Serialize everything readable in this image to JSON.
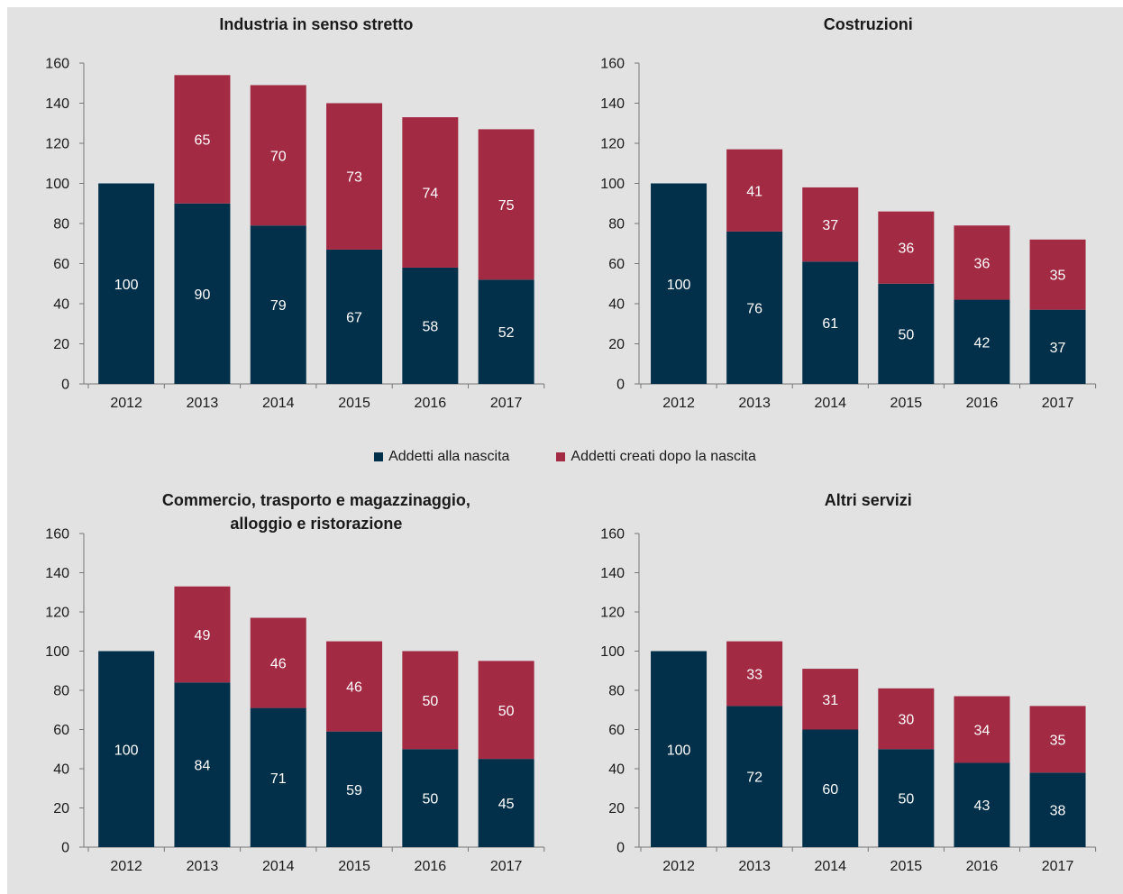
{
  "colors": {
    "birth": "#02304a",
    "after": "#a22a43",
    "axis": "#777777",
    "text": "#1a1a1a",
    "label": "#ffffff"
  },
  "legend": {
    "birth": "Addetti alla nascita",
    "after": "Addetti creati dopo la nascita"
  },
  "chart_data": [
    {
      "type": "bar",
      "stacked": true,
      "title": [
        "Industria in senso stretto"
      ],
      "categories": [
        "2012",
        "2013",
        "2014",
        "2015",
        "2016",
        "2017"
      ],
      "series": [
        {
          "name": "Addetti alla nascita",
          "values": [
            100,
            90,
            79,
            67,
            58,
            52
          ]
        },
        {
          "name": "Addetti creati dopo la nascita",
          "values": [
            null,
            65,
            70,
            73,
            74,
            75
          ]
        }
      ],
      "totals": [
        100,
        154,
        149,
        140,
        133,
        127
      ],
      "ylim": [
        0,
        160
      ],
      "yticks": [
        0,
        20,
        40,
        60,
        80,
        100,
        120,
        140,
        160
      ]
    },
    {
      "type": "bar",
      "stacked": true,
      "title": [
        "Costruzioni"
      ],
      "categories": [
        "2012",
        "2013",
        "2014",
        "2015",
        "2016",
        "2017"
      ],
      "series": [
        {
          "name": "Addetti alla nascita",
          "values": [
            100,
            76,
            61,
            50,
            42,
            37
          ]
        },
        {
          "name": "Addetti creati dopo la nascita",
          "values": [
            null,
            41,
            37,
            36,
            36,
            35
          ]
        }
      ],
      "totals": [
        100,
        117,
        98,
        86,
        79,
        72
      ],
      "ylim": [
        0,
        160
      ],
      "yticks": [
        0,
        20,
        40,
        60,
        80,
        100,
        120,
        140,
        160
      ]
    },
    {
      "type": "bar",
      "stacked": true,
      "title": [
        "Commercio, trasporto e magazzinaggio,",
        "alloggio e ristorazione"
      ],
      "categories": [
        "2012",
        "2013",
        "2014",
        "2015",
        "2016",
        "2017"
      ],
      "series": [
        {
          "name": "Addetti alla nascita",
          "values": [
            100,
            84,
            71,
            59,
            50,
            45
          ]
        },
        {
          "name": "Addetti creati dopo la nascita",
          "values": [
            null,
            49,
            46,
            46,
            50,
            50
          ]
        }
      ],
      "totals": [
        100,
        133,
        117,
        105,
        100,
        95
      ],
      "ylim": [
        0,
        160
      ],
      "yticks": [
        0,
        20,
        40,
        60,
        80,
        100,
        120,
        140,
        160
      ]
    },
    {
      "type": "bar",
      "stacked": true,
      "title": [
        "Altri servizi"
      ],
      "categories": [
        "2012",
        "2013",
        "2014",
        "2015",
        "2016",
        "2017"
      ],
      "series": [
        {
          "name": "Addetti alla nascita",
          "values": [
            100,
            72,
            60,
            50,
            43,
            38
          ]
        },
        {
          "name": "Addetti creati dopo la nascita",
          "values": [
            null,
            33,
            31,
            30,
            34,
            35
          ]
        }
      ],
      "totals": [
        100,
        105,
        91,
        81,
        77,
        72
      ],
      "ylim": [
        0,
        160
      ],
      "yticks": [
        0,
        20,
        40,
        60,
        80,
        100,
        120,
        140,
        160
      ]
    }
  ]
}
